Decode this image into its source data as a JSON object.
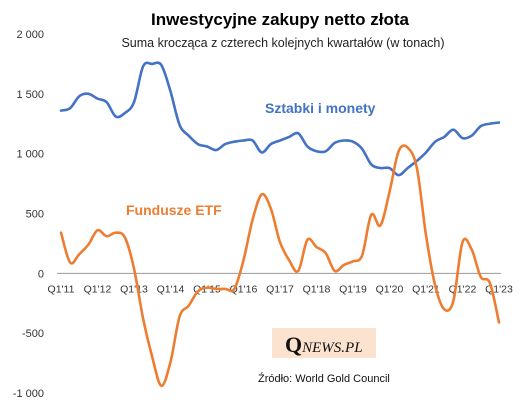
{
  "colors": {
    "series_bars_coins": "#4472c4",
    "series_etf": "#ed7d31",
    "axis": "#999999",
    "logo_bg": "#fbe3cf"
  },
  "chart_data": {
    "type": "line",
    "title": "Inwestycyjne  zakupy netto złota",
    "subtitle": "Suma krocząca z czterech kolejnych kwartałów (w tonach)",
    "ylim": [
      -1000,
      2000
    ],
    "y_ticks": [
      2000,
      1500,
      1000,
      500,
      0,
      -500,
      -1000
    ],
    "y_tick_labels": [
      "2 000",
      "1 500",
      "1 000",
      "500",
      "0",
      "-500",
      "-1 000"
    ],
    "x_tick_labels": [
      "Q1'11",
      "Q1'12",
      "Q1'13",
      "Q1'14",
      "Q1'15",
      "Q1'16",
      "Q1'17",
      "Q1'18",
      "Q1'19",
      "Q1'20",
      "Q1'21",
      "Q1'22",
      "Q1'23"
    ],
    "x": [
      "Q1'11",
      "Q2'11",
      "Q3'11",
      "Q4'11",
      "Q1'12",
      "Q2'12",
      "Q3'12",
      "Q4'12",
      "Q1'13",
      "Q2'13",
      "Q3'13",
      "Q4'13",
      "Q1'14",
      "Q2'14",
      "Q3'14",
      "Q4'14",
      "Q1'15",
      "Q2'15",
      "Q3'15",
      "Q4'15",
      "Q1'16",
      "Q2'16",
      "Q3'16",
      "Q4'16",
      "Q1'17",
      "Q2'17",
      "Q3'17",
      "Q4'17",
      "Q1'18",
      "Q2'18",
      "Q3'18",
      "Q4'18",
      "Q1'19",
      "Q2'19",
      "Q3'19",
      "Q4'19",
      "Q1'20",
      "Q2'20",
      "Q3'20",
      "Q4'20",
      "Q1'21",
      "Q2'21",
      "Q3'21",
      "Q4'21",
      "Q1'22",
      "Q2'22",
      "Q3'22",
      "Q4'22",
      "Q1'23"
    ],
    "grid": false,
    "legend": "none",
    "series": [
      {
        "name": "Sztabki i monety",
        "label_color": "#4472c4",
        "values": [
          1360,
          1380,
          1480,
          1500,
          1460,
          1430,
          1310,
          1340,
          1430,
          1730,
          1750,
          1740,
          1520,
          1240,
          1150,
          1080,
          1060,
          1030,
          1080,
          1100,
          1110,
          1110,
          1010,
          1080,
          1110,
          1140,
          1170,
          1060,
          1020,
          1020,
          1090,
          1110,
          1100,
          1040,
          910,
          880,
          880,
          820,
          880,
          940,
          1010,
          1100,
          1140,
          1200,
          1130,
          1150,
          1230,
          1250,
          1260
        ]
      },
      {
        "name": "Fundusze ETF",
        "label_color": "#ed7d31",
        "values": [
          340,
          90,
          160,
          240,
          360,
          310,
          340,
          300,
          40,
          -380,
          -700,
          -940,
          -740,
          -360,
          -270,
          -150,
          -120,
          -130,
          -130,
          -130,
          110,
          450,
          660,
          540,
          260,
          110,
          20,
          280,
          220,
          170,
          20,
          70,
          100,
          150,
          490,
          400,
          680,
          1020,
          1050,
          880,
          320,
          -100,
          -300,
          -230,
          260,
          200,
          -30,
          -80,
          -410
        ]
      }
    ],
    "annotations": [
      "Sztabki i monety",
      "Fundusze ETF"
    ]
  },
  "logo": {
    "q": "Q",
    "rest": "NEWS.PL"
  },
  "source": "Źródło: World Gold Council"
}
